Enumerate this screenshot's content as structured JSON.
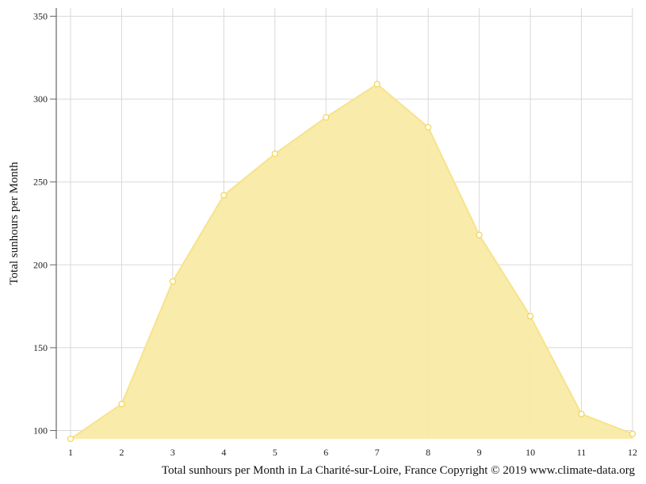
{
  "chart_data": {
    "type": "area",
    "title": "",
    "ylabel": "Total sunhours per Month",
    "xlabel": "",
    "caption": "Total sunhours per Month in La Charité-sur-Loire, France Copyright © 2019 www.climate-data.org",
    "x": [
      "1",
      "2",
      "3",
      "4",
      "5",
      "6",
      "7",
      "8",
      "9",
      "10",
      "11",
      "12"
    ],
    "values": [
      95,
      116,
      190,
      242,
      267,
      289,
      309,
      283,
      218,
      169,
      110,
      98
    ],
    "ylim": [
      95,
      355
    ],
    "yticks": [
      100,
      150,
      200,
      250,
      300,
      350
    ],
    "grid": true,
    "colors": {
      "fill": "#f9eaa5",
      "line": "#f7e38d",
      "marker_stroke": "#f2d75c",
      "grid": "#d9d9d9",
      "axis": "#666666"
    }
  }
}
